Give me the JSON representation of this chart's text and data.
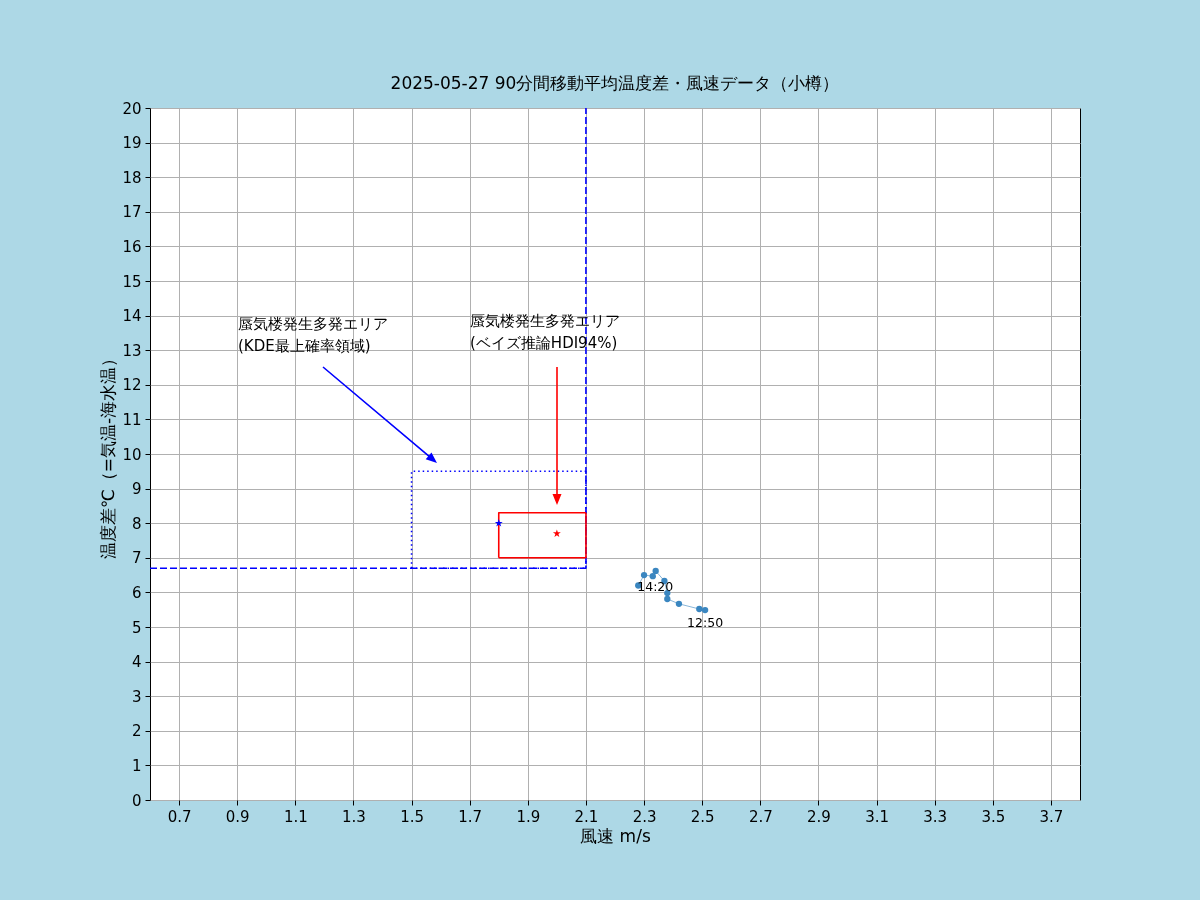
{
  "chart_data": {
    "type": "line",
    "title": "2025-05-27  90分間移動平均温度差・風速データ（小樽）",
    "xlabel": "風速 m/s",
    "ylabel": "温度差℃（=気温-海水温）",
    "xlim": [
      0.6,
      3.8
    ],
    "xticks": [
      0.7,
      0.9,
      1.1,
      1.3,
      1.5,
      1.7,
      1.9,
      2.1,
      2.3,
      2.5,
      2.7,
      2.9,
      3.1,
      3.3,
      3.5,
      3.7
    ],
    "ylim": [
      0,
      20
    ],
    "yticks": [
      0,
      1,
      2,
      3,
      4,
      5,
      6,
      7,
      8,
      9,
      10,
      11,
      12,
      13,
      14,
      15,
      16,
      17,
      18,
      19,
      20
    ],
    "grid": true,
    "series": [
      {
        "color": "#0000ff",
        "line_style": "dashed",
        "marker": "none",
        "x": [
          0.6,
          2.1,
          2.1
        ],
        "values": [
          6.7,
          6.7,
          20
        ]
      },
      {
        "color": "#0000ff",
        "line_style": "dotted",
        "marker": "none",
        "x": [
          1.5,
          2.1,
          2.1
        ],
        "values": [
          6.7,
          6.7,
          9.5
        ]
      },
      {
        "color": "#0000ff",
        "line_style": "dotted",
        "marker": "none",
        "x": [
          1.5,
          1.5,
          2.1
        ],
        "values": [
          6.7,
          9.5,
          9.5
        ]
      },
      {
        "color": "#ff0000",
        "line_style": "solid",
        "marker": "none",
        "x": [
          1.8,
          2.1,
          2.1
        ],
        "values": [
          7.0,
          7.0,
          8.3
        ]
      },
      {
        "color": "#ff0000",
        "line_style": "solid",
        "marker": "none",
        "x": [
          1.8,
          1.8,
          2.1
        ],
        "values": [
          7.0,
          8.3,
          8.3
        ]
      },
      {
        "type": "scatter",
        "color": "#0000ff",
        "marker": "star",
        "x": [
          1.8
        ],
        "values": [
          8.0
        ]
      },
      {
        "type": "scatter",
        "color": "#ff0000",
        "marker": "star",
        "x": [
          2.0
        ],
        "values": [
          7.7
        ]
      },
      {
        "color": "#3a86c0",
        "line_style": "solid",
        "marker": "circle",
        "x": [
          2.51,
          2.49,
          2.42,
          2.38,
          2.38,
          2.37,
          2.34,
          2.33,
          2.3,
          2.28
        ],
        "values": [
          5.49,
          5.52,
          5.67,
          5.81,
          5.98,
          6.33,
          6.62,
          6.47,
          6.5,
          6.2
        ]
      }
    ],
    "annotations": [
      "蜃気楼発生多発エリア\n(KDE最上確率領域)",
      "蜃気楼発生多発エリア\n(ベイズ推論HDI94%)",
      {
        "text": "12:50",
        "x": 2.51,
        "y": 5.49
      },
      {
        "text": "14:20",
        "x": 2.28,
        "y": 6.2
      }
    ]
  }
}
